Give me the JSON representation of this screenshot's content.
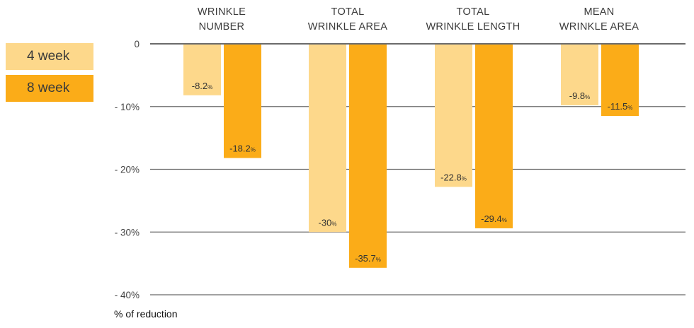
{
  "chart_data": {
    "type": "bar",
    "orientation": "vertical-downward",
    "categories": [
      [
        "WRINKLE",
        "NUMBER"
      ],
      [
        "TOTAL",
        "WRINKLE AREA"
      ],
      [
        "TOTAL",
        "WRINKLE LENGTH"
      ],
      [
        "MEAN",
        "WRINKLE AREA"
      ]
    ],
    "series": [
      {
        "name": "4 week",
        "color": "#fdd88b",
        "values": [
          -8.2,
          -30,
          -22.8,
          -9.8
        ],
        "labels": [
          "-8.2",
          "-30",
          "-22.8",
          "-9.8"
        ]
      },
      {
        "name": "8 week",
        "color": "#fbac18",
        "values": [
          -18.2,
          -35.7,
          -29.4,
          -11.5
        ],
        "labels": [
          "-18.2",
          "-35.7",
          "-29.4",
          "-11.5"
        ]
      }
    ],
    "value_suffix": "%",
    "yticks": [
      0,
      -10,
      -20,
      -30,
      -40
    ],
    "ytick_labels": [
      "0",
      "- 10%",
      "- 20%",
      "- 30%",
      "- 40%"
    ],
    "ylim": [
      -40,
      0
    ],
    "ylabel": "% of reduction",
    "grid": true,
    "legend_position": "left",
    "axis_color": "#6b6b6b"
  }
}
